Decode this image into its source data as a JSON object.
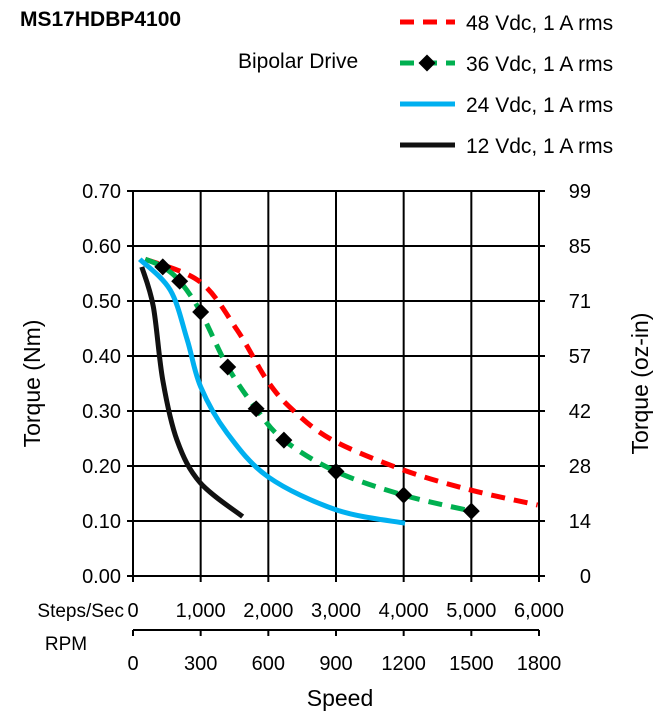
{
  "chart_data": {
    "type": "line",
    "title": "MS17HDBP4100",
    "subtitle": "Bipolar Drive",
    "xlabel": "Speed",
    "x_axis_rows": [
      {
        "label": "Steps/Sec",
        "ticks": [
          "0",
          "1,000",
          "2,000",
          "3,000",
          "4,000",
          "5,000",
          "6,000"
        ]
      },
      {
        "label": "RPM",
        "ticks": [
          "0",
          "300",
          "600",
          "900",
          "1200",
          "1500",
          "1800"
        ]
      }
    ],
    "xlim": [
      0,
      6000
    ],
    "ylabel": "Torque (Nm)",
    "ylim": [
      0,
      0.7
    ],
    "yticks": [
      "0.00",
      "0.10",
      "0.20",
      "0.30",
      "0.40",
      "0.50",
      "0.60",
      "0.70"
    ],
    "y2label": "Torque (oz-in)",
    "y2ticks": [
      "0",
      "14",
      "28",
      "42",
      "57",
      "71",
      "85",
      "99"
    ],
    "grid": true,
    "legend_placement": "top-right",
    "series": [
      {
        "name": "48 Vdc, 1 A rms",
        "color": "#ff0000",
        "style": "dashed",
        "marker": "none",
        "x": [
          180,
          990,
          1540,
          1980,
          2360,
          2950,
          3990,
          5000,
          5980
        ],
        "y": [
          0.576,
          0.535,
          0.447,
          0.356,
          0.302,
          0.247,
          0.193,
          0.156,
          0.129
        ]
      },
      {
        "name": "36 Vdc, 1 A rms",
        "color": "#00b050",
        "style": "dashed",
        "marker": "diamond",
        "x": [
          180,
          440,
          690,
          1000,
          1400,
          1820,
          2230,
          3000,
          4000,
          5000
        ],
        "y": [
          0.576,
          0.562,
          0.536,
          0.48,
          0.38,
          0.304,
          0.247,
          0.19,
          0.147,
          0.118
        ]
      },
      {
        "name": "24 Vdc, 1 A rms",
        "color": "#00b0f0",
        "style": "solid",
        "marker": "none",
        "x": [
          100,
          550,
          800,
          1000,
          1390,
          2000,
          3010,
          4020
        ],
        "y": [
          0.576,
          0.52,
          0.43,
          0.344,
          0.26,
          0.18,
          0.12,
          0.096
        ]
      },
      {
        "name": "12 Vdc, 1 A rms",
        "color": "#111111",
        "style": "solid",
        "marker": "none",
        "x": [
          130,
          300,
          440,
          650,
          990,
          1620
        ],
        "y": [
          0.562,
          0.49,
          0.356,
          0.247,
          0.17,
          0.108
        ]
      }
    ]
  }
}
